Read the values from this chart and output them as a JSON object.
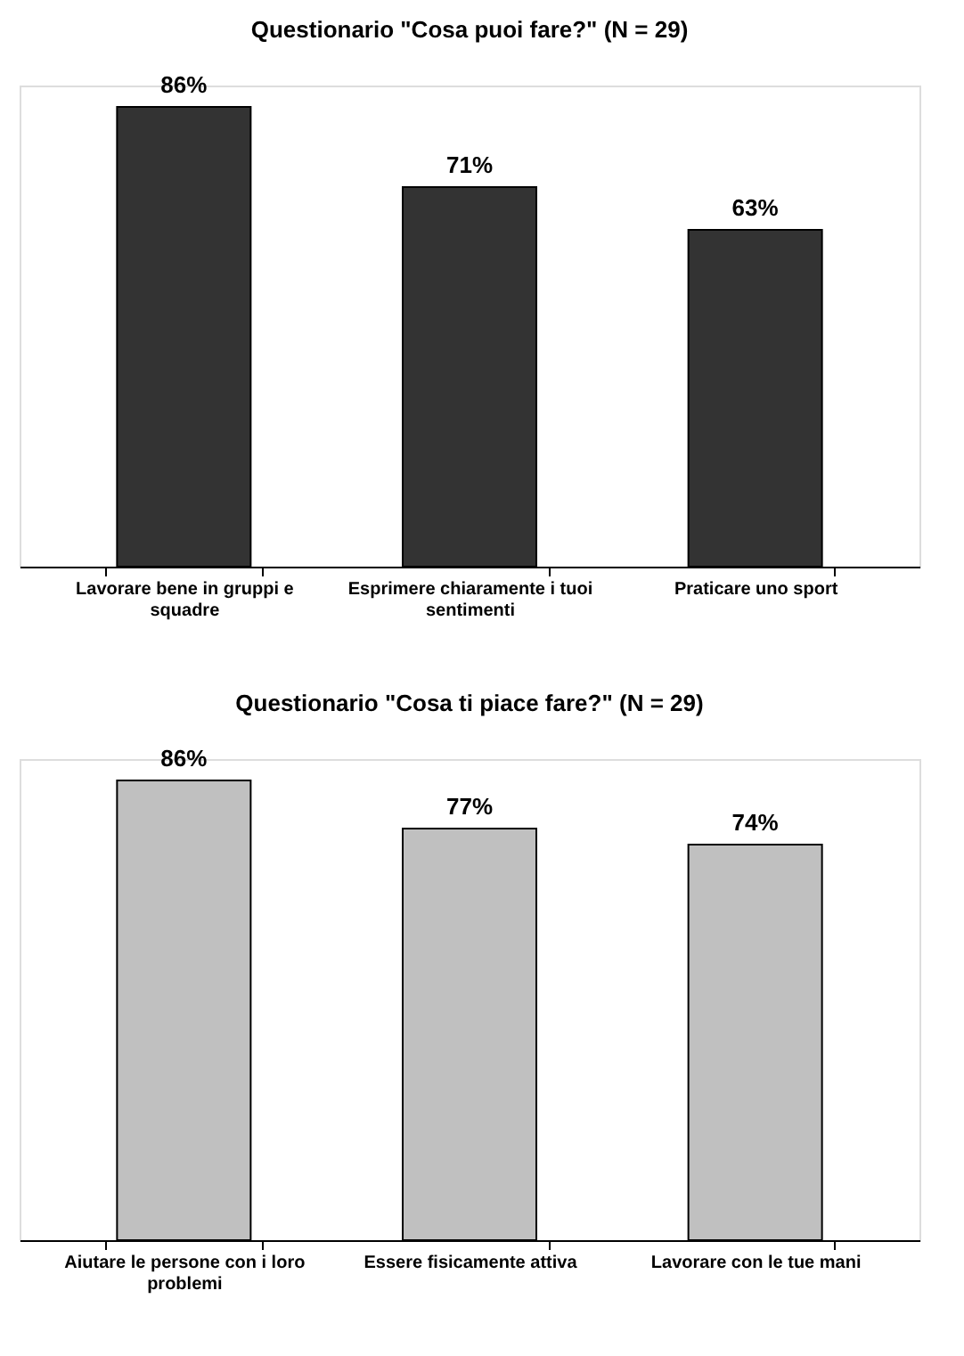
{
  "chart_data": [
    {
      "type": "bar",
      "title": "Questionario \"Cosa puoi fare?\" (N = 29)",
      "categories": [
        "Lavorare bene in gruppi e squadre",
        "Esprimere chiaramente i tuoi sentimenti",
        "Praticare uno sport"
      ],
      "values": [
        86,
        71,
        63
      ],
      "value_labels": [
        "86%",
        "71%",
        "63%"
      ],
      "color": "#333333",
      "tick_labels": "x",
      "grid": false
    },
    {
      "type": "bar",
      "title": "Questionario \"Cosa ti piace fare?\" (N = 29)",
      "categories": [
        "Aiutare le persone con i loro problemi",
        "Essere fisicamente attiva",
        "Lavorare con le tue mani"
      ],
      "values": [
        86,
        77,
        74
      ],
      "value_labels": [
        "86%",
        "77%",
        "74%"
      ],
      "color": "#c0c0c0",
      "tick_labels": "x",
      "grid": false
    }
  ]
}
